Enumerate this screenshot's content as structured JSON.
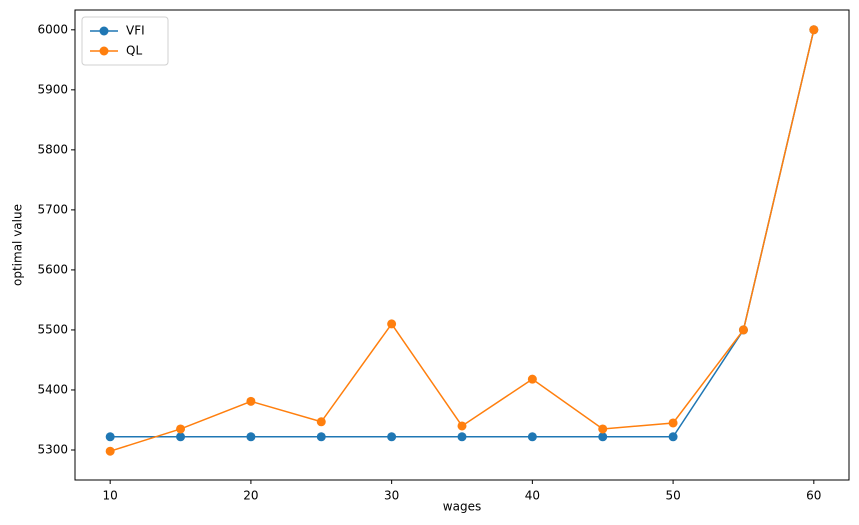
{
  "chart_data": {
    "type": "line",
    "xlabel": "wages",
    "ylabel": "optimal value",
    "x": [
      10,
      15,
      20,
      25,
      30,
      35,
      40,
      45,
      50,
      55,
      60
    ],
    "series": [
      {
        "name": "VFI",
        "color": "#1f77b4",
        "values": [
          5322,
          5322,
          5322,
          5322,
          5322,
          5322,
          5322,
          5322,
          5322,
          5500,
          6000
        ]
      },
      {
        "name": "QL",
        "color": "#ff7f0e",
        "values": [
          5298,
          5335,
          5381,
          5347,
          5510,
          5340,
          5418,
          5335,
          5345,
          5500,
          6000
        ]
      }
    ],
    "xlim": [
      7.5,
      62.5
    ],
    "ylim": [
      5250,
      6033
    ],
    "xticks": [
      10,
      20,
      30,
      40,
      50,
      60
    ],
    "yticks": [
      5300,
      5400,
      5500,
      5600,
      5700,
      5800,
      5900,
      6000
    ],
    "legend": "upper left",
    "markers": true
  }
}
